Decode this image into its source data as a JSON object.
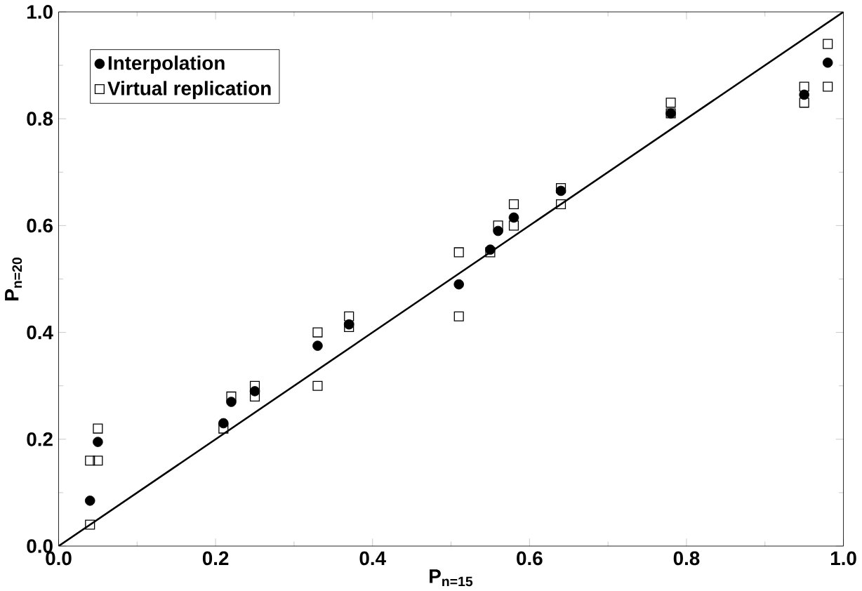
{
  "chart_data": {
    "type": "scatter",
    "xlabel": "P$_{n=15}$",
    "ylabel": "P$_{n=20}$",
    "xlim": [
      0.0,
      1.0
    ],
    "ylim": [
      0.0,
      1.0
    ],
    "xticks": [
      {
        "value": 0,
        "label": "0.0"
      },
      0.2,
      0.4,
      0.6,
      0.8,
      {
        "value": 1,
        "label": "1.0"
      }
    ],
    "yticks": [
      {
        "value": 0,
        "label": "0.0"
      },
      0.2,
      0.4,
      0.6,
      0.8,
      {
        "value": 1,
        "label": "1.0"
      }
    ],
    "grid": false,
    "legend": "top left",
    "series": [
      {
        "name": "Interpolation",
        "color": "#000000",
        "marker": "circle",
        "x": [
          0.04,
          0.05,
          0.21,
          0.22,
          0.25,
          0.33,
          0.37,
          0.51,
          0.55,
          0.56,
          0.58,
          0.64,
          0.78,
          0.95,
          0.98
        ],
        "values": [
          0.085,
          0.195,
          0.23,
          0.27,
          0.29,
          0.375,
          0.415,
          0.49,
          0.555,
          0.59,
          0.615,
          0.665,
          0.81,
          0.845,
          0.905
        ]
      },
      {
        "name": "Virtual replication",
        "color": "#000000",
        "marker": "square",
        "x": [
          0.04,
          0.04,
          0.05,
          0.05,
          0.21,
          0.22,
          0.25,
          0.25,
          0.33,
          0.33,
          0.37,
          0.37,
          0.51,
          0.51,
          0.55,
          0.56,
          0.58,
          0.58,
          0.64,
          0.64,
          0.78,
          0.78,
          0.95,
          0.95,
          0.98,
          0.98
        ],
        "values": [
          0.04,
          0.16,
          0.16,
          0.22,
          0.22,
          0.28,
          0.28,
          0.3,
          0.3,
          0.4,
          0.41,
          0.43,
          0.43,
          0.55,
          0.55,
          0.6,
          0.6,
          0.64,
          0.64,
          0.67,
          0.81,
          0.83,
          0.83,
          0.86,
          0.86,
          0.94
        ]
      },
      {
        "type": "line",
        "color": "#000000",
        "marker": "none",
        "line_style": "solid",
        "x": [
          0,
          1
        ],
        "values": [
          0,
          1
        ]
      }
    ]
  }
}
